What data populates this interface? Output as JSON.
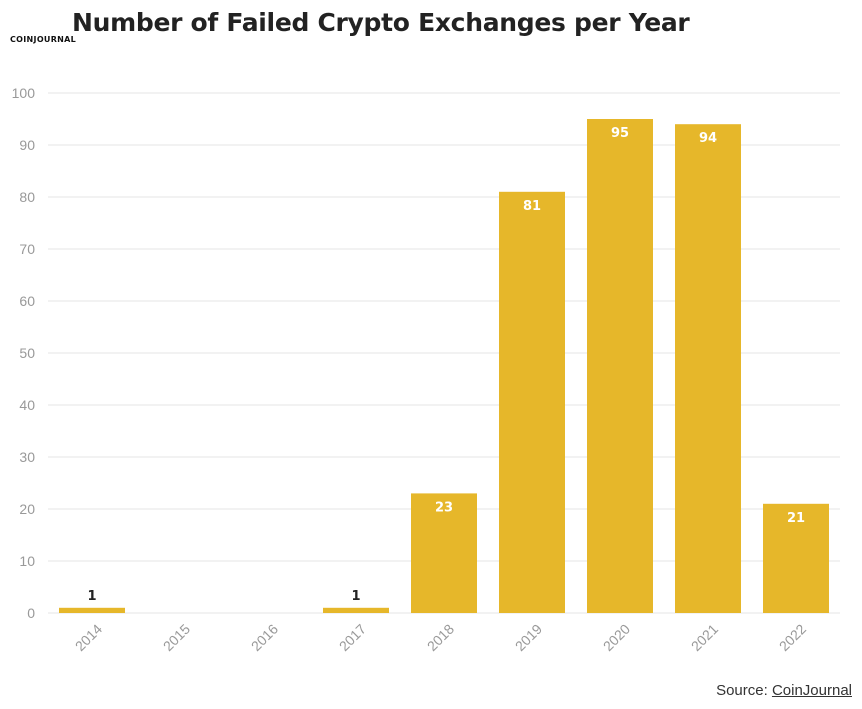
{
  "header": {
    "logo_text": "COINJOURNAL",
    "title": "Number of Failed Crypto Exchanges per Year"
  },
  "footer": {
    "source_label": "Source:",
    "source_link": "CoinJournal"
  },
  "colors": {
    "bar": "#e6b72a",
    "grid": "#e5e5e5",
    "axis_text": "#999999"
  },
  "chart_data": {
    "type": "bar",
    "title": "Number of Failed Crypto Exchanges per Year",
    "xlabel": "",
    "ylabel": "",
    "categories": [
      "2014",
      "2015",
      "2016",
      "2017",
      "2018",
      "2019",
      "2020",
      "2021",
      "2022"
    ],
    "values": [
      1,
      0,
      0,
      1,
      23,
      81,
      95,
      94,
      21
    ],
    "data_labels": [
      "1",
      "",
      "",
      "1",
      "23",
      "81",
      "95",
      "94",
      "21"
    ],
    "ylim": [
      0,
      100
    ],
    "yticks": [
      0,
      10,
      20,
      30,
      40,
      50,
      60,
      70,
      80,
      90,
      100
    ],
    "grid": true,
    "legend": "none"
  }
}
